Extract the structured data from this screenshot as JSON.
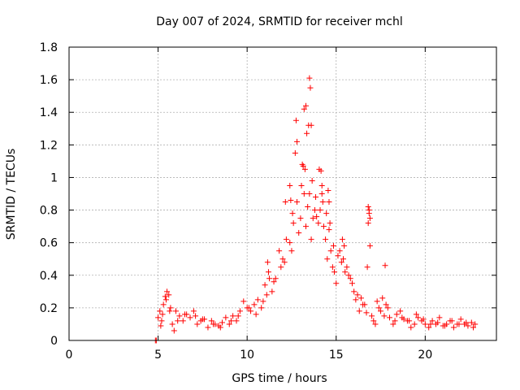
{
  "chart_data": {
    "type": "scatter",
    "title": "Day 007 of 2024, SRMTID for receiver mchl",
    "xlabel": "GPS time / hours",
    "ylabel": "SRMTID / TECUs",
    "xlim": [
      0,
      24
    ],
    "ylim": [
      0,
      1.8
    ],
    "xticks": [
      0,
      5,
      10,
      15,
      20
    ],
    "yticks": [
      0,
      0.2,
      0.4,
      0.6,
      0.8,
      1,
      1.2,
      1.4,
      1.6,
      1.8
    ],
    "xtick_labels": [
      "0",
      "5",
      "10",
      "15",
      "20"
    ],
    "ytick_labels": [
      "0",
      "0.2",
      "0.4",
      "0.6",
      "0.8",
      "1",
      "1.2",
      "1.4",
      "1.6",
      "1.8"
    ],
    "grid": true,
    "marker": "plus",
    "color": "#ff0000",
    "series": [
      {
        "name": "SRMTID",
        "x": [
          4.85,
          4.9,
          5.0,
          5.1,
          5.15,
          5.2,
          5.3,
          5.4,
          5.5,
          5.6,
          5.7,
          5.8,
          5.9,
          6.0,
          6.2,
          6.4,
          6.6,
          6.8,
          7.0,
          7.2,
          7.4,
          7.6,
          7.8,
          8.0,
          8.2,
          8.4,
          8.6,
          8.8,
          9.0,
          9.2,
          9.4,
          9.6,
          9.8,
          10.0,
          10.2,
          10.4,
          10.6,
          10.8,
          11.0,
          11.2,
          11.4,
          11.6,
          11.8,
          12.0,
          12.2,
          12.4,
          12.6,
          12.8,
          13.0,
          13.1,
          13.2,
          13.3,
          13.4,
          13.5,
          13.6,
          13.7,
          13.8,
          13.9,
          14.0,
          14.1,
          14.2,
          14.3,
          14.4,
          14.5,
          14.6,
          14.7,
          14.8,
          14.9,
          15.0,
          15.2,
          15.4,
          15.6,
          15.8,
          16.0,
          16.2,
          16.4,
          16.6,
          16.8,
          16.85,
          16.9,
          17.0,
          17.2,
          17.4,
          17.6,
          17.8,
          18.0,
          18.2,
          18.4,
          18.6,
          18.8,
          19.0,
          19.2,
          19.4,
          19.6,
          19.8,
          20.0,
          20.2,
          20.4,
          20.6,
          20.8,
          21.0,
          21.2,
          21.4,
          21.6,
          21.8,
          22.0,
          22.2,
          22.4,
          22.6,
          22.8,
          5.25,
          5.45,
          5.65,
          6.1,
          6.5,
          7.1,
          7.5,
          8.1,
          8.5,
          9.1,
          9.5,
          10.1,
          10.5,
          10.9,
          11.1,
          11.5,
          11.9,
          12.1,
          12.5,
          12.9,
          13.05,
          13.25,
          13.45,
          13.65,
          13.85,
          14.05,
          14.25,
          14.45,
          14.65,
          14.85,
          15.1,
          15.3,
          15.5,
          15.7,
          15.9,
          16.1,
          16.3,
          16.5,
          16.7,
          17.1,
          17.3,
          17.5,
          17.7,
          17.9,
          18.3,
          18.7,
          19.1,
          19.5,
          19.9,
          20.3,
          20.7,
          21.1,
          21.5,
          21.9,
          22.3,
          22.7,
          13.5,
          13.55,
          13.3,
          13.35,
          13.2,
          12.75,
          12.8,
          13.15,
          13.6,
          14.15,
          14.2,
          12.4,
          12.45,
          12.7,
          14.55,
          14.6,
          16.75,
          16.8,
          16.85,
          16.9,
          17.75,
          11.15,
          11.25,
          12.15,
          12.55,
          15.35,
          15.45
        ],
        "values": [
          0.0,
          0.0,
          0.14,
          0.18,
          0.09,
          0.12,
          0.22,
          0.27,
          0.3,
          0.28,
          0.2,
          0.1,
          0.06,
          0.18,
          0.15,
          0.12,
          0.16,
          0.14,
          0.18,
          0.1,
          0.12,
          0.13,
          0.08,
          0.12,
          0.1,
          0.09,
          0.11,
          0.14,
          0.1,
          0.15,
          0.12,
          0.18,
          0.24,
          0.2,
          0.18,
          0.22,
          0.25,
          0.2,
          0.34,
          0.42,
          0.3,
          0.38,
          0.55,
          0.5,
          0.62,
          0.6,
          0.72,
          0.85,
          0.75,
          1.08,
          0.9,
          0.7,
          0.82,
          0.9,
          0.62,
          0.75,
          0.8,
          0.76,
          0.72,
          0.8,
          0.9,
          0.7,
          0.62,
          0.5,
          0.68,
          0.55,
          0.45,
          0.42,
          0.35,
          0.55,
          0.5,
          0.45,
          0.38,
          0.3,
          0.28,
          0.26,
          0.22,
          0.82,
          0.78,
          0.58,
          0.15,
          0.1,
          0.2,
          0.26,
          0.22,
          0.14,
          0.1,
          0.16,
          0.18,
          0.13,
          0.12,
          0.08,
          0.1,
          0.14,
          0.12,
          0.1,
          0.08,
          0.12,
          0.1,
          0.14,
          0.09,
          0.1,
          0.12,
          0.08,
          0.1,
          0.13,
          0.1,
          0.09,
          0.11,
          0.1,
          0.16,
          0.25,
          0.18,
          0.12,
          0.16,
          0.15,
          0.13,
          0.1,
          0.08,
          0.12,
          0.15,
          0.2,
          0.16,
          0.24,
          0.28,
          0.36,
          0.45,
          0.48,
          0.55,
          0.66,
          0.95,
          1.05,
          1.32,
          0.98,
          0.88,
          1.05,
          0.85,
          0.78,
          0.72,
          0.58,
          0.52,
          0.48,
          0.42,
          0.4,
          0.35,
          0.25,
          0.18,
          0.22,
          0.17,
          0.12,
          0.24,
          0.18,
          0.15,
          0.2,
          0.12,
          0.14,
          0.12,
          0.16,
          0.13,
          0.1,
          0.11,
          0.09,
          0.12,
          0.1,
          0.11,
          0.08,
          1.61,
          1.55,
          1.44,
          1.27,
          1.42,
          1.35,
          1.22,
          1.07,
          1.32,
          1.04,
          0.95,
          0.95,
          0.86,
          1.15,
          0.92,
          0.85,
          0.45,
          0.72,
          0.8,
          0.75,
          0.46,
          0.48,
          0.38,
          0.85,
          0.78,
          0.62,
          0.58
        ]
      }
    ]
  }
}
